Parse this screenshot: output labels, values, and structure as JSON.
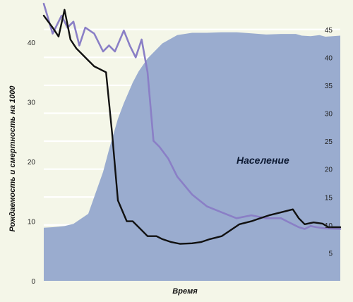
{
  "chart_data": {
    "type": "line",
    "xlabel": "Время",
    "ylabel": "Рождаемость и смертность на 1000",
    "annotation": "Население",
    "ylim_left": [
      0,
      45
    ],
    "ylim_right": [
      0,
      48
    ],
    "left_ticks": [
      "0",
      "10",
      "20",
      "30",
      "40"
    ],
    "right_ticks": [
      "5",
      "10",
      "15",
      "20",
      "25",
      "30",
      "35",
      "40",
      "45"
    ],
    "grid": true,
    "colors": {
      "background": "#f4f6e8",
      "grid": "#ffffff",
      "population_fill": "#9aaccf",
      "birth_rate": "#8a7fc6",
      "death_rate": "#111111"
    },
    "series": [
      {
        "name": "",
        "role": "population-area",
        "axis": "right",
        "x": [
          0,
          3,
          5,
          7,
          10,
          15,
          20,
          22,
          25,
          27,
          30,
          32,
          35,
          40,
          45,
          50,
          55,
          60,
          65,
          70,
          75,
          80,
          85,
          87,
          90,
          93,
          95,
          100
        ],
        "values": [
          9.5,
          9.6,
          9.7,
          9.8,
          10.2,
          12.0,
          19.5,
          23.5,
          29.0,
          31.8,
          35.5,
          37.5,
          39.8,
          42.5,
          44.0,
          44.4,
          44.4,
          44.5,
          44.5,
          44.3,
          44.1,
          44.2,
          44.2,
          43.9,
          43.8,
          44.0,
          43.7,
          43.9
        ]
      },
      {
        "name": "",
        "role": "birth-rate",
        "axis": "left",
        "x": [
          0,
          3,
          6,
          8,
          10,
          12,
          14,
          17,
          20,
          22,
          24,
          27,
          29,
          31,
          33,
          35,
          37,
          39,
          42,
          45,
          50,
          55,
          60,
          65,
          70,
          75,
          80,
          82,
          84,
          86,
          88,
          90,
          92,
          95,
          100
        ],
        "values": [
          46.5,
          41.5,
          44.5,
          42.5,
          43.5,
          39.5,
          42.5,
          41.5,
          38.5,
          39.5,
          38.5,
          42.0,
          39.5,
          37.5,
          40.5,
          35.0,
          23.5,
          22.5,
          20.5,
          17.5,
          14.5,
          12.5,
          11.5,
          10.5,
          11.0,
          10.5,
          10.5,
          10.0,
          9.5,
          9.0,
          8.7,
          9.2,
          9.0,
          8.8,
          8.7
        ]
      },
      {
        "name": "",
        "role": "death-rate",
        "axis": "left",
        "x": [
          0,
          3,
          5,
          7,
          9,
          11,
          13,
          15,
          17,
          19,
          21,
          23,
          25,
          28,
          30,
          33,
          35,
          38,
          40,
          43,
          46,
          50,
          53,
          56,
          60,
          63,
          66,
          70,
          73,
          76,
          80,
          84,
          86,
          88,
          91,
          94,
          96,
          100
        ],
        "values": [
          44.5,
          42.5,
          41.0,
          45.5,
          40.5,
          39.0,
          38.0,
          37.0,
          36.0,
          35.5,
          35.0,
          25.0,
          13.5,
          10.0,
          10.0,
          8.5,
          7.5,
          7.5,
          7.0,
          6.5,
          6.2,
          6.3,
          6.5,
          7.0,
          7.5,
          8.5,
          9.5,
          10.0,
          10.5,
          11.0,
          11.5,
          12.0,
          10.5,
          9.5,
          9.8,
          9.6,
          9.0,
          9.0
        ]
      }
    ]
  }
}
